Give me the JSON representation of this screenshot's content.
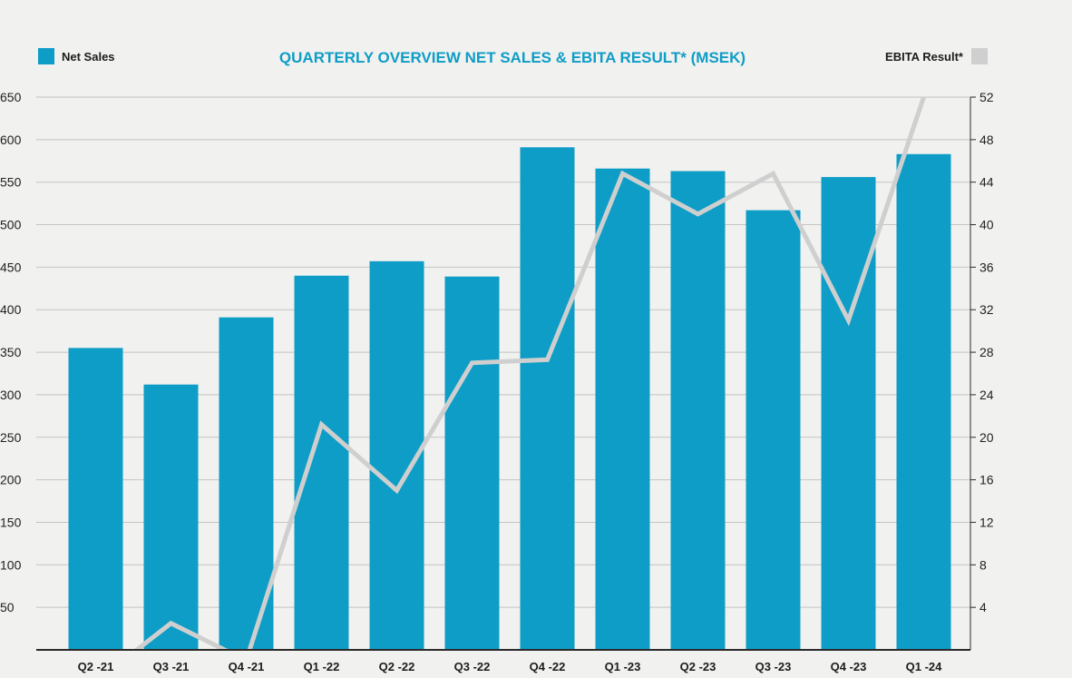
{
  "chart_data": {
    "type": "bar",
    "title": "QUARTERLY OVERVIEW NET SALES & EBITA RESULT* (MSEK)",
    "categories": [
      "Q2 -21",
      "Q3 -21",
      "Q4 -21",
      "Q1 -22",
      "Q2 -22",
      "Q3 -22",
      "Q4 -22",
      "Q1 -23",
      "Q2 -23",
      "Q3 -23",
      "Q4 -23",
      "Q1 -24"
    ],
    "series": [
      {
        "name": "Net Sales",
        "type": "bar",
        "axis": "left",
        "color": "#0e9dc6",
        "values": [
          355,
          312,
          391,
          440,
          457,
          439,
          591,
          566,
          563,
          517,
          556,
          583
        ]
      },
      {
        "name": "EBITA Result*",
        "type": "line",
        "axis": "right",
        "color": "#cfcfcf",
        "values": [
          -3,
          2.5,
          -1,
          21.2,
          15,
          27,
          27.3,
          44.8,
          41,
          44.8,
          31,
          52
        ]
      }
    ],
    "ylim_left": [
      0,
      650
    ],
    "yticks_left": [
      50,
      100,
      150,
      200,
      250,
      300,
      350,
      400,
      450,
      500,
      550,
      600,
      650
    ],
    "ylim_right": [
      0,
      52
    ],
    "yticks_right": [
      4,
      8,
      12,
      16,
      20,
      24,
      28,
      32,
      36,
      40,
      44,
      48,
      52
    ],
    "grid": true,
    "legend": [
      {
        "label": "Net Sales",
        "position": "top-left",
        "color": "#0e9dc6"
      },
      {
        "label": "EBITA Result*",
        "position": "top-right",
        "color": "#cfcfcf"
      }
    ]
  }
}
